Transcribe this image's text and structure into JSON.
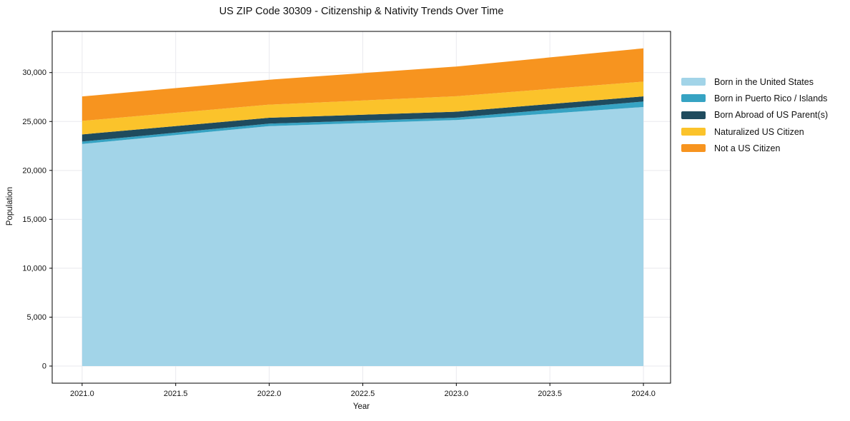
{
  "title": "US ZIP Code 30309 - Citizenship &amp; Nativity Trends Over Time",
  "chart_data": {
    "type": "area",
    "stacked": true,
    "title": "US ZIP Code 30309 - Citizenship & Nativity Trends Over Time",
    "xlabel": "Year",
    "ylabel": "Population",
    "x": [
      2021,
      2022,
      2023,
      2024
    ],
    "series": [
      {
        "name": "Born in the United States",
        "color": "#a2d4e8",
        "values": [
          22700,
          24530,
          25150,
          26480
        ]
      },
      {
        "name": "Born in Puerto Rico / Islands",
        "color": "#36a3c3",
        "values": [
          250,
          250,
          240,
          560
        ]
      },
      {
        "name": "Born Abroad of US Parent(s)",
        "color": "#1f4b5e",
        "values": [
          730,
          600,
          610,
          530
        ]
      },
      {
        "name": "Naturalized US Citizen",
        "color": "#fbc32b",
        "values": [
          1380,
          1340,
          1580,
          1510
        ]
      },
      {
        "name": "Not a US Citizen",
        "color": "#f7941f",
        "values": [
          2500,
          2550,
          3040,
          3400
        ]
      }
    ],
    "totals": [
      27560,
      29270,
      30620,
      32480
    ],
    "xlim": [
      2020.84,
      2024.145
    ],
    "ylim": [
      -1750,
      34210
    ],
    "xticks": [
      {
        "value": 2021.0,
        "label": "2021.0"
      },
      {
        "value": 2021.5,
        "label": "2021.5"
      },
      {
        "value": 2022.0,
        "label": "2022.0"
      },
      {
        "value": 2022.5,
        "label": "2022.5"
      },
      {
        "value": 2023.0,
        "label": "2023.0"
      },
      {
        "value": 2023.5,
        "label": "2023.5"
      },
      {
        "value": 2024.0,
        "label": "2024.0"
      }
    ],
    "yticks": [
      {
        "value": 0,
        "label": "0"
      },
      {
        "value": 5000,
        "label": "5,000"
      },
      {
        "value": 10000,
        "label": "10,000"
      },
      {
        "value": 15000,
        "label": "15,000"
      },
      {
        "value": 20000,
        "label": "20,000"
      },
      {
        "value": 25000,
        "label": "25,000"
      },
      {
        "value": 30000,
        "label": "30,000"
      }
    ],
    "grid": true,
    "grid_color": "#e9e9ee",
    "axis_border_color": "#000000",
    "legend_position": "right"
  }
}
